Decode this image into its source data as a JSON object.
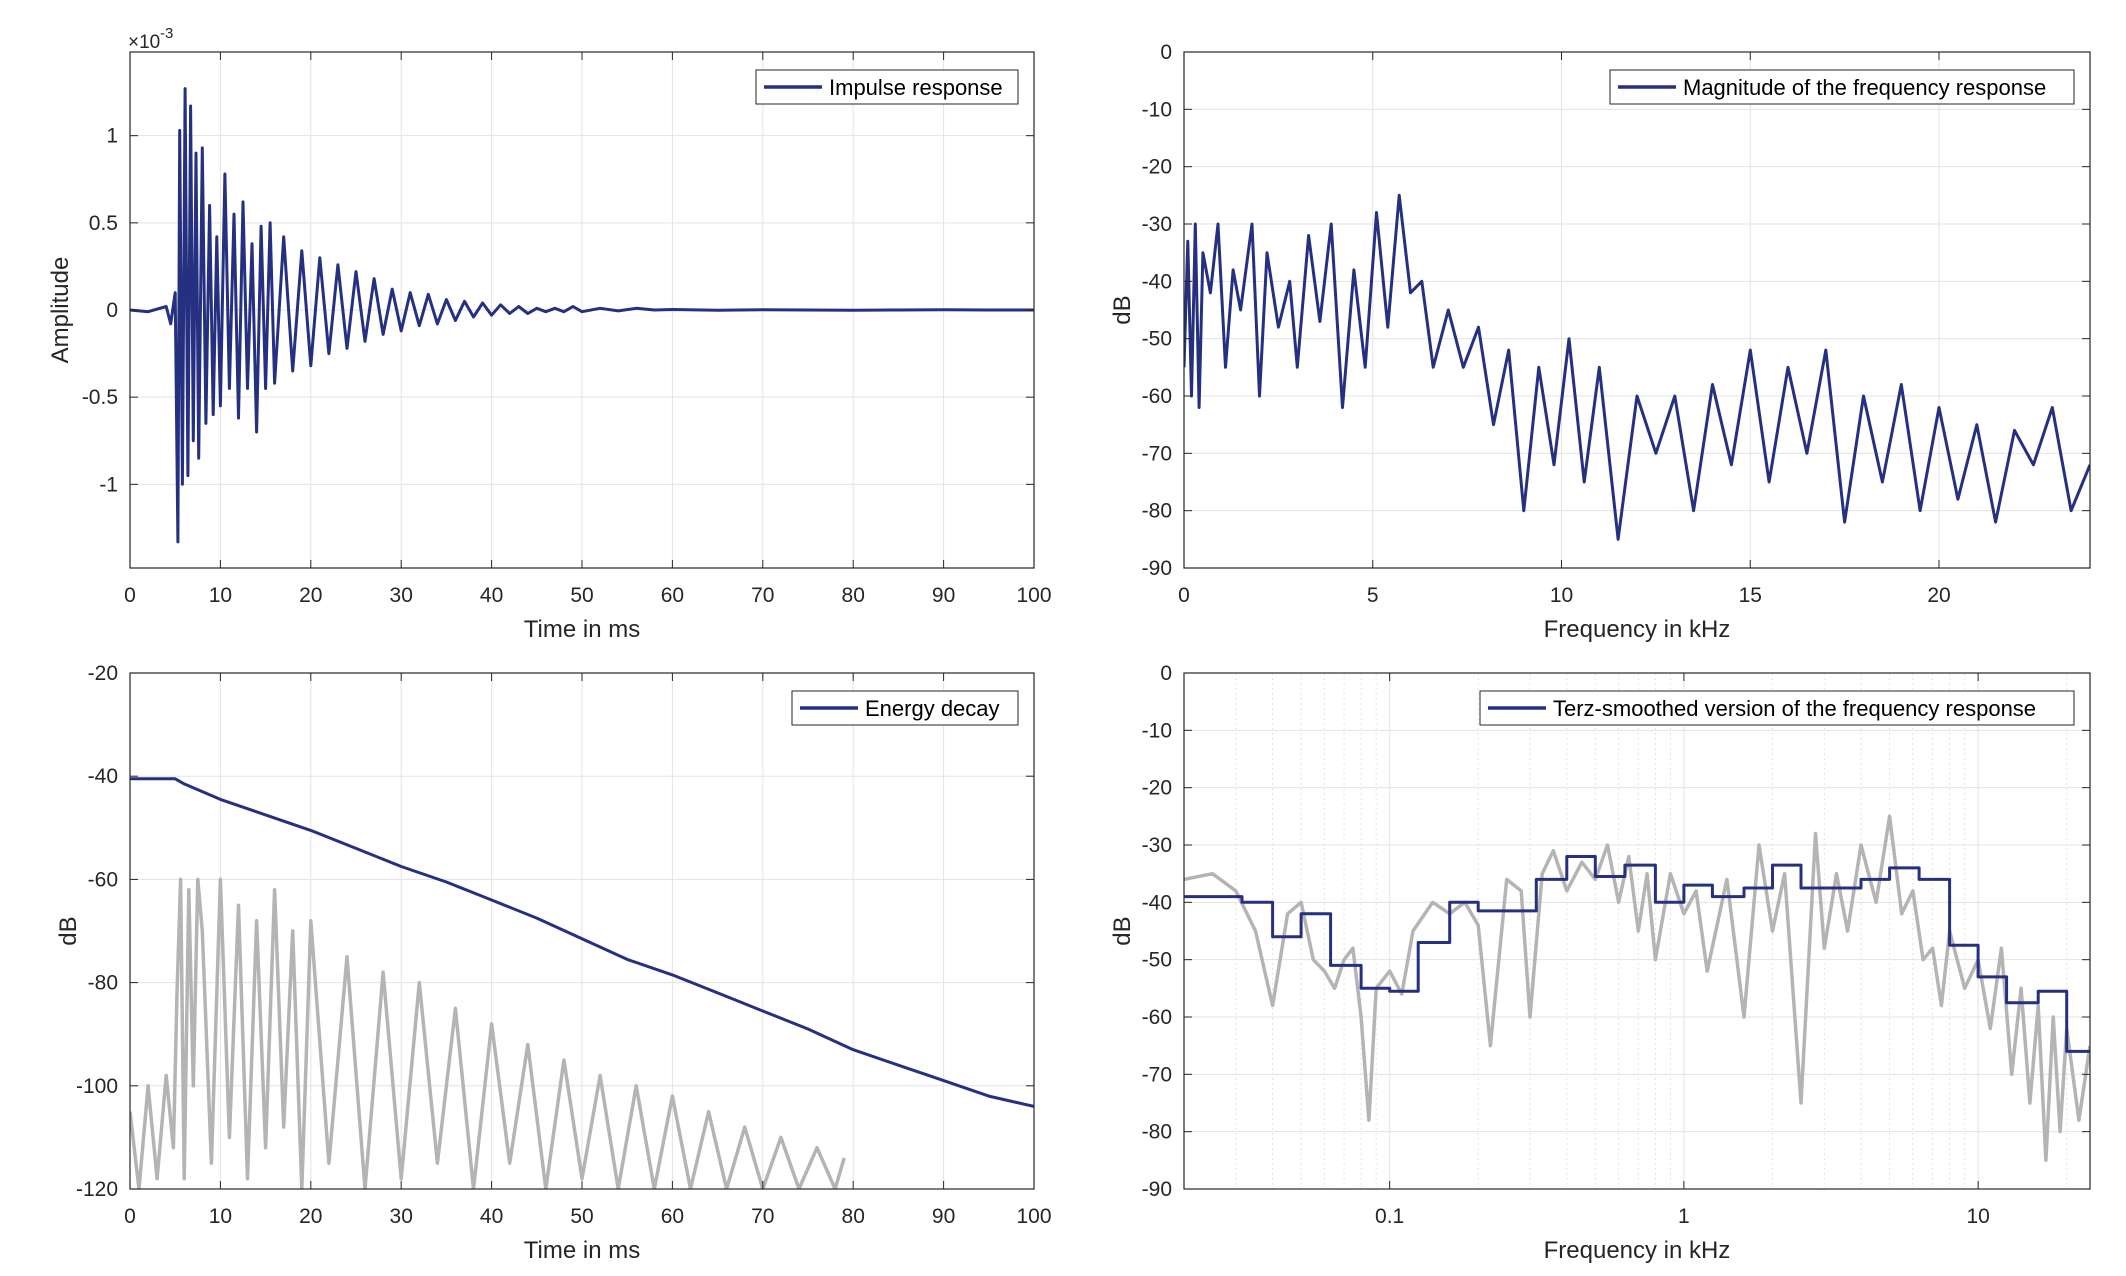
{
  "colors": {
    "primary": "#253180",
    "secondary": "#b4b4b4",
    "grid": "#e3e3e3",
    "axis": "#262626"
  },
  "chart_data": [
    {
      "id": "impulse",
      "type": "line",
      "xlabel": "Time in ms",
      "ylabel": "Amplitude",
      "exponent_base": "×10",
      "exponent_power": "-3",
      "xlim": [
        0,
        100
      ],
      "ylim": [
        -1.48,
        1.48
      ],
      "xticks": [
        0,
        10,
        20,
        30,
        40,
        50,
        60,
        70,
        80,
        90,
        100
      ],
      "xtick_labels": [
        "0",
        "10",
        "20",
        "30",
        "40",
        "50",
        "60",
        "70",
        "80",
        "90",
        "100"
      ],
      "yticks": [
        1,
        0.5,
        0,
        -0.5,
        -1
      ],
      "ytick_labels": [
        "1",
        "0.5",
        "0",
        "-0.5",
        "-1"
      ],
      "grid": true,
      "legend_position": "top-right",
      "series": [
        {
          "name": "Impulse response",
          "color": "#253180",
          "x": [
            0,
            2,
            4,
            4.5,
            5,
            5.3,
            5.5,
            5.8,
            6.1,
            6.4,
            6.7,
            7,
            7.3,
            7.6,
            8,
            8.4,
            8.8,
            9.2,
            9.6,
            10,
            10.5,
            11,
            11.5,
            12,
            12.5,
            13,
            13.5,
            14,
            14.5,
            15,
            15.5,
            16,
            17,
            18,
            19,
            20,
            21,
            22,
            23,
            24,
            25,
            26,
            27,
            28,
            29,
            30,
            31,
            32,
            33,
            34,
            35,
            36,
            37,
            38,
            39,
            40,
            41,
            42,
            43,
            44,
            45,
            46,
            47,
            48,
            49,
            50,
            52,
            54,
            56,
            58,
            60,
            65,
            70,
            75,
            80,
            85,
            90,
            95,
            100
          ],
          "y": [
            0.0,
            -0.01,
            0.02,
            -0.08,
            0.1,
            -1.33,
            1.03,
            -1.0,
            1.27,
            -0.95,
            1.17,
            -0.75,
            0.9,
            -0.85,
            0.93,
            -0.65,
            0.6,
            -0.6,
            0.42,
            -0.55,
            0.78,
            -0.45,
            0.55,
            -0.62,
            0.62,
            -0.45,
            0.38,
            -0.7,
            0.48,
            -0.45,
            0.5,
            -0.42,
            0.42,
            -0.35,
            0.34,
            -0.32,
            0.3,
            -0.25,
            0.26,
            -0.22,
            0.22,
            -0.18,
            0.18,
            -0.14,
            0.12,
            -0.12,
            0.1,
            -0.09,
            0.09,
            -0.08,
            0.06,
            -0.06,
            0.05,
            -0.04,
            0.04,
            -0.03,
            0.03,
            -0.02,
            0.02,
            -0.02,
            0.01,
            -0.01,
            0.01,
            -0.01,
            0.02,
            -0.01,
            0.01,
            -0.005,
            0.01,
            0.0,
            0.003,
            -0.002,
            0.002,
            0.0,
            -0.001,
            0.0,
            0.001,
            0.0,
            0.0
          ]
        }
      ]
    },
    {
      "id": "magnitude",
      "type": "line",
      "xlabel": "Frequency in kHz",
      "ylabel": "dB",
      "xlim": [
        0,
        24
      ],
      "ylim": [
        -90,
        0
      ],
      "xticks": [
        0,
        5,
        10,
        15,
        20
      ],
      "xtick_labels": [
        "0",
        "5",
        "10",
        "15",
        "20"
      ],
      "yticks": [
        0,
        -10,
        -20,
        -30,
        -40,
        -50,
        -60,
        -70,
        -80,
        -90
      ],
      "ytick_labels": [
        "0",
        "-10",
        "-20",
        "-30",
        "-40",
        "-50",
        "-60",
        "-70",
        "-80",
        "-90"
      ],
      "grid": true,
      "legend_position": "top-right",
      "series": [
        {
          "name": "Magnitude of the frequency response",
          "color": "#253180",
          "x": [
            0,
            0.1,
            0.2,
            0.3,
            0.4,
            0.5,
            0.7,
            0.9,
            1.1,
            1.3,
            1.5,
            1.8,
            2.0,
            2.2,
            2.5,
            2.8,
            3.0,
            3.3,
            3.6,
            3.9,
            4.2,
            4.5,
            4.8,
            5.1,
            5.4,
            5.7,
            6.0,
            6.3,
            6.6,
            7.0,
            7.4,
            7.8,
            8.2,
            8.6,
            9.0,
            9.4,
            9.8,
            10.2,
            10.6,
            11.0,
            11.5,
            12.0,
            12.5,
            13.0,
            13.5,
            14.0,
            14.5,
            15.0,
            15.5,
            16.0,
            16.5,
            17.0,
            17.5,
            18.0,
            18.5,
            19.0,
            19.5,
            20.0,
            20.5,
            21.0,
            21.5,
            22.0,
            22.5,
            23.0,
            23.5,
            24.0
          ],
          "y": [
            -55,
            -33,
            -60,
            -30,
            -62,
            -35,
            -42,
            -30,
            -55,
            -38,
            -45,
            -30,
            -60,
            -35,
            -48,
            -40,
            -55,
            -32,
            -47,
            -30,
            -62,
            -38,
            -55,
            -28,
            -48,
            -25,
            -42,
            -40,
            -55,
            -45,
            -55,
            -48,
            -65,
            -52,
            -80,
            -55,
            -72,
            -50,
            -75,
            -55,
            -85,
            -60,
            -70,
            -60,
            -80,
            -58,
            -72,
            -52,
            -75,
            -55,
            -70,
            -52,
            -82,
            -60,
            -75,
            -58,
            -80,
            -62,
            -78,
            -65,
            -82,
            -66,
            -72,
            -62,
            -80,
            -72
          ]
        }
      ]
    },
    {
      "id": "energy",
      "type": "line",
      "xlabel": "Time in ms",
      "ylabel": "dB",
      "xlim": [
        0,
        100
      ],
      "ylim": [
        -120,
        -20
      ],
      "xticks": [
        0,
        10,
        20,
        30,
        40,
        50,
        60,
        70,
        80,
        90,
        100
      ],
      "xtick_labels": [
        "0",
        "10",
        "20",
        "30",
        "40",
        "50",
        "60",
        "70",
        "80",
        "90",
        "100"
      ],
      "yticks": [
        -20,
        -40,
        -60,
        -80,
        -100,
        -120
      ],
      "ytick_labels": [
        "-20",
        "-40",
        "-60",
        "-80",
        "-100",
        "-120"
      ],
      "grid": true,
      "legend_position": "top-right",
      "series": [
        {
          "name": "",
          "color": "#b4b4b4",
          "x": [
            0,
            1,
            2,
            3,
            4,
            4.8,
            5.2,
            5.6,
            6,
            6.5,
            7,
            7.5,
            8,
            9,
            10,
            11,
            12,
            13,
            14,
            15,
            16,
            17,
            18,
            19,
            20,
            22,
            24,
            26,
            28,
            30,
            32,
            34,
            36,
            38,
            40,
            42,
            44,
            46,
            48,
            50,
            52,
            54,
            56,
            58,
            60,
            62,
            64,
            66,
            68,
            70,
            72,
            74,
            76,
            78,
            79
          ],
          "y": [
            -105,
            -120,
            -100,
            -118,
            -98,
            -112,
            -82,
            -60,
            -118,
            -62,
            -100,
            -60,
            -70,
            -115,
            -60,
            -110,
            -65,
            -118,
            -68,
            -112,
            -62,
            -108,
            -70,
            -120,
            -68,
            -115,
            -75,
            -120,
            -78,
            -118,
            -80,
            -115,
            -85,
            -120,
            -88,
            -115,
            -92,
            -120,
            -95,
            -118,
            -98,
            -120,
            -100,
            -120,
            -102,
            -120,
            -105,
            -120,
            -108,
            -120,
            -110,
            -120,
            -112,
            -120,
            -114
          ]
        },
        {
          "name": "Energy decay",
          "color": "#253180",
          "x": [
            0,
            5,
            6,
            10,
            15,
            20,
            25,
            30,
            35,
            40,
            45,
            50,
            55,
            60,
            65,
            70,
            75,
            80,
            85,
            90,
            95,
            100
          ],
          "y": [
            -40.5,
            -40.5,
            -41.5,
            -44.5,
            -47.5,
            -50.5,
            -54,
            -57.5,
            -60.5,
            -64,
            -67.5,
            -71.5,
            -75.5,
            -78.5,
            -82,
            -85.5,
            -89,
            -93,
            -96,
            -99,
            -102,
            -104
          ]
        }
      ]
    },
    {
      "id": "terz",
      "type": "line",
      "xlabel": "Frequency in kHz",
      "ylabel": "dB",
      "xscale": "log",
      "xlim": [
        0.02,
        24
      ],
      "ylim": [
        -90,
        0
      ],
      "xticks": [
        0.1,
        1,
        10
      ],
      "xtick_labels": [
        "0.1",
        "1",
        "10"
      ],
      "yticks": [
        0,
        -10,
        -20,
        -30,
        -40,
        -50,
        -60,
        -70,
        -80,
        -90
      ],
      "ytick_labels": [
        "0",
        "-10",
        "-20",
        "-30",
        "-40",
        "-50",
        "-60",
        "-70",
        "-80",
        "-90"
      ],
      "grid": true,
      "legend_position": "top-right",
      "series": [
        {
          "name": "",
          "color": "#b4b4b4",
          "x": [
            0.02,
            0.025,
            0.03,
            0.035,
            0.04,
            0.045,
            0.05,
            0.055,
            0.06,
            0.065,
            0.07,
            0.075,
            0.08,
            0.085,
            0.09,
            0.1,
            0.11,
            0.12,
            0.14,
            0.16,
            0.18,
            0.2,
            0.22,
            0.25,
            0.28,
            0.3,
            0.33,
            0.36,
            0.4,
            0.45,
            0.5,
            0.55,
            0.6,
            0.65,
            0.7,
            0.75,
            0.8,
            0.9,
            1.0,
            1.1,
            1.2,
            1.4,
            1.6,
            1.8,
            2.0,
            2.2,
            2.5,
            2.8,
            3.0,
            3.3,
            3.6,
            4.0,
            4.5,
            5.0,
            5.5,
            6.0,
            6.5,
            7.0,
            7.5,
            8.0,
            9.0,
            10.0,
            11.0,
            12.0,
            13.0,
            14.0,
            15.0,
            16.0,
            17.0,
            18.0,
            19.0,
            20.0,
            22.0,
            24.0
          ],
          "y": [
            -36,
            -35,
            -38,
            -45,
            -58,
            -42,
            -40,
            -50,
            -52,
            -55,
            -50,
            -48,
            -60,
            -78,
            -55,
            -52,
            -56,
            -45,
            -40,
            -42,
            -40,
            -44,
            -65,
            -36,
            -38,
            -60,
            -35,
            -31,
            -38,
            -33,
            -36,
            -30,
            -40,
            -32,
            -45,
            -35,
            -50,
            -35,
            -42,
            -38,
            -52,
            -36,
            -60,
            -30,
            -45,
            -35,
            -75,
            -28,
            -48,
            -35,
            -45,
            -30,
            -40,
            -25,
            -42,
            -38,
            -50,
            -48,
            -58,
            -45,
            -55,
            -50,
            -62,
            -48,
            -70,
            -55,
            -75,
            -58,
            -85,
            -60,
            -80,
            -62,
            -78,
            -65
          ]
        },
        {
          "name": "Terz-smoothed version of the frequency response",
          "color": "#253180",
          "step": true,
          "x": [
            0.02,
            0.0315,
            0.04,
            0.05,
            0.063,
            0.08,
            0.1,
            0.125,
            0.16,
            0.2,
            0.25,
            0.315,
            0.4,
            0.5,
            0.63,
            0.8,
            1.0,
            1.25,
            1.6,
            2.0,
            2.5,
            3.15,
            4.0,
            5.0,
            6.3,
            8.0,
            10.0,
            12.5,
            16.0,
            20.0,
            24.0
          ],
          "y": [
            -39,
            -40,
            -46,
            -42,
            -51,
            -55,
            -55.5,
            -47,
            -40,
            -41.5,
            -41.5,
            -36,
            -32,
            -35.5,
            -33.5,
            -40,
            -37,
            -39,
            -37.5,
            -33.5,
            -37.5,
            -37.5,
            -36,
            -34,
            -36,
            -47.5,
            -53,
            -57.5,
            -55.5,
            -66,
            -66
          ]
        }
      ]
    }
  ]
}
